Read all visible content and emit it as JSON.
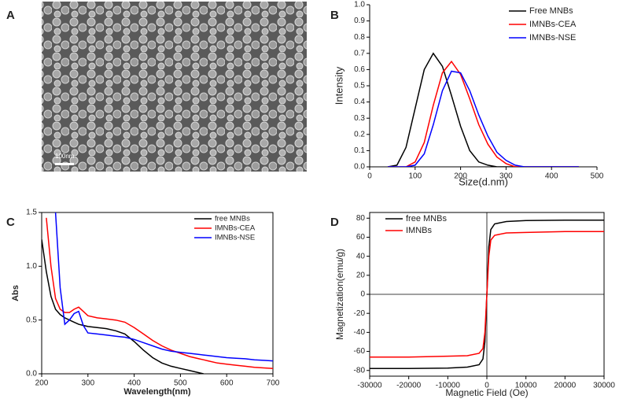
{
  "image": {
    "label": "A",
    "scale_bar": "100nm"
  },
  "chart_data": [
    {
      "type": "line",
      "label": "B",
      "x_label": "Size(d.nm)",
      "y_label": "Intensity",
      "xlim": [
        0,
        500
      ],
      "xticks": [
        0,
        100,
        200,
        300,
        400,
        500
      ],
      "ylim": [
        0,
        1.0
      ],
      "yticks": [
        {
          "value": 0,
          "label": "0.0"
        },
        0.1,
        0.2,
        0.3,
        0.4,
        0.5,
        0.6,
        0.7,
        0.8,
        0.9,
        {
          "value": 1,
          "label": "1.0"
        }
      ],
      "legend": "upper right",
      "frame": false,
      "x": [
        40,
        60,
        80,
        100,
        120,
        140,
        160,
        180,
        200,
        220,
        240,
        260,
        280,
        300,
        320,
        340,
        360,
        380,
        400,
        420,
        440,
        460
      ],
      "series": [
        {
          "name": "Free MNBs",
          "color": "#000000",
          "values": [
            0,
            0.01,
            0.12,
            0.36,
            0.6,
            0.7,
            0.62,
            0.44,
            0.25,
            0.1,
            0.03,
            0.01,
            0,
            0,
            0,
            0,
            0,
            0,
            0,
            0,
            0,
            0
          ]
        },
        {
          "name": "IMNBs-CEA",
          "color": "#ff0000",
          "values": [
            0,
            0,
            0,
            0.03,
            0.15,
            0.38,
            0.58,
            0.65,
            0.57,
            0.42,
            0.26,
            0.14,
            0.06,
            0.02,
            0,
            0,
            0,
            0,
            0,
            0,
            0,
            0
          ]
        },
        {
          "name": "IMNBs-NSE",
          "color": "#0000ff",
          "values": [
            0,
            0,
            0,
            0.01,
            0.08,
            0.26,
            0.47,
            0.59,
            0.58,
            0.47,
            0.32,
            0.19,
            0.09,
            0.04,
            0.01,
            0,
            0,
            0,
            0,
            0,
            0,
            0
          ]
        }
      ]
    },
    {
      "type": "line",
      "label": "C",
      "x_label": "Wavelength(nm)",
      "y_label": "Abs",
      "xlim": [
        200,
        700
      ],
      "xticks": [
        200,
        300,
        400,
        500,
        600,
        700
      ],
      "ylim": [
        0,
        1.5
      ],
      "yticks": [
        {
          "value": 0,
          "label": "0.0"
        },
        0.5,
        {
          "value": 1,
          "label": "1.0"
        },
        1.5
      ],
      "legend": "upper right",
      "frame": true,
      "x": [
        200,
        210,
        220,
        230,
        240,
        250,
        260,
        270,
        280,
        290,
        300,
        320,
        340,
        360,
        380,
        400,
        420,
        440,
        460,
        480,
        500,
        520,
        540,
        550,
        560,
        580,
        600,
        620,
        640,
        660,
        680,
        700
      ],
      "series": [
        {
          "name": "free MNBs",
          "color": "#000000",
          "values": [
            1.25,
            0.95,
            0.72,
            0.6,
            0.55,
            0.52,
            0.5,
            0.48,
            0.46,
            0.45,
            0.44,
            0.43,
            0.42,
            0.4,
            0.37,
            0.3,
            0.22,
            0.15,
            0.1,
            0.07,
            0.05,
            0.03,
            0.01,
            0,
            null,
            null,
            null,
            null,
            null,
            null,
            null,
            null
          ]
        },
        {
          "name": "IMNBs-CEA",
          "color": "#ff0000",
          "values": [
            null,
            1.45,
            1.0,
            0.7,
            0.6,
            0.57,
            0.57,
            0.6,
            0.62,
            0.58,
            0.54,
            0.52,
            0.51,
            0.5,
            0.48,
            0.43,
            0.37,
            0.31,
            0.26,
            0.22,
            0.19,
            0.16,
            0.14,
            0.13,
            0.12,
            0.1,
            0.09,
            0.08,
            0.07,
            0.06,
            0.055,
            0.05
          ]
        },
        {
          "name": "IMNBs-NSE",
          "color": "#0000ff",
          "values": [
            null,
            null,
            null,
            1.5,
            0.8,
            0.46,
            0.5,
            0.56,
            0.58,
            0.45,
            0.38,
            0.37,
            0.36,
            0.35,
            0.34,
            0.32,
            0.29,
            0.26,
            0.23,
            0.21,
            0.2,
            0.19,
            0.18,
            0.175,
            0.17,
            0.16,
            0.15,
            0.145,
            0.14,
            0.13,
            0.125,
            0.12
          ]
        }
      ]
    },
    {
      "type": "line",
      "label": "D",
      "x_label": "Magnetic Field (Oe)",
      "y_label": "Magnetization(emu/g)",
      "xlim": [
        -30000,
        30000
      ],
      "xticks": [
        -30000,
        -20000,
        -10000,
        0,
        10000,
        20000,
        30000
      ],
      "ylim": [
        -86,
        86
      ],
      "yticks": [
        -80,
        -60,
        -40,
        -20,
        0,
        20,
        40,
        60,
        80
      ],
      "legend": "upper left",
      "frame": true,
      "x": [
        -30000,
        -20000,
        -10000,
        -5000,
        -2000,
        -1000,
        -500,
        0,
        500,
        1000,
        2000,
        5000,
        10000,
        20000,
        30000
      ],
      "series": [
        {
          "name": "free MNBs",
          "color": "#000000",
          "values": [
            -78,
            -78,
            -77.5,
            -76.5,
            -74,
            -68,
            -50,
            0,
            50,
            68,
            74,
            76.5,
            77.5,
            78,
            78
          ]
        },
        {
          "name": "IMNBs",
          "color": "#ff0000",
          "values": [
            -66,
            -66,
            -65,
            -64.5,
            -62,
            -57,
            -40,
            0,
            40,
            57,
            62,
            64.5,
            65,
            66,
            66
          ]
        }
      ]
    }
  ]
}
